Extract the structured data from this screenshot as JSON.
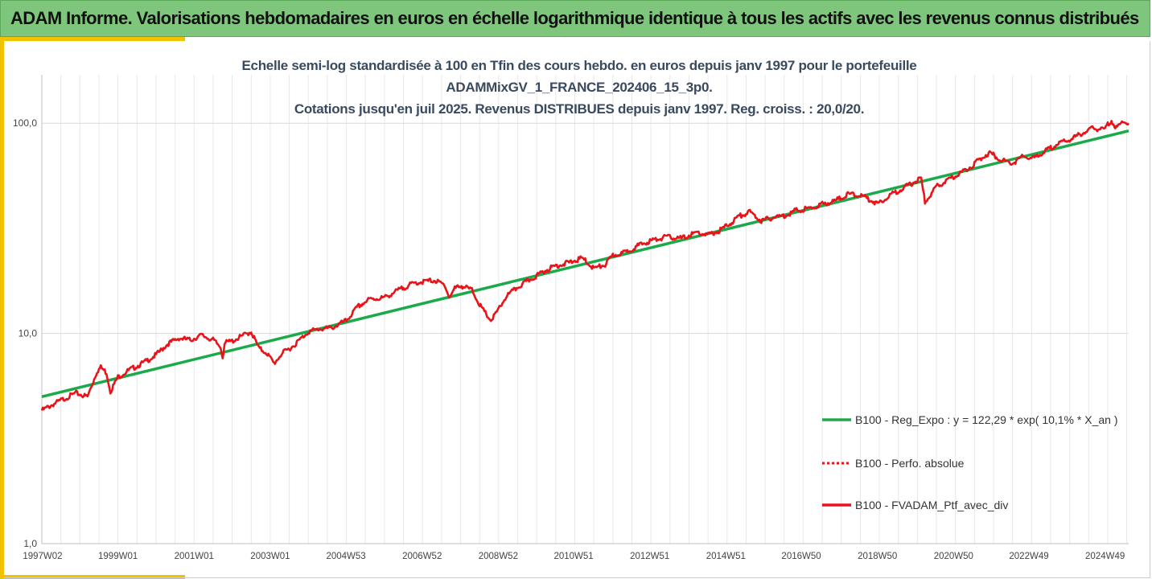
{
  "banner": {
    "title": "ADAM Informe. Valorisations hebdomadaires en euros en échelle logarithmique identique à tous les actifs avec les revenus connus distribués"
  },
  "colors": {
    "banner_bg": "#7dc67b",
    "accent": "#f2c200",
    "regression": "#1aaa4a",
    "portfolio": "#e8141a"
  },
  "chart_data": {
    "type": "line",
    "title_lines": [
      "Echelle semi-log standardisée à 100 en Tfin des cours hebdo.  en euros depuis janv 1997 pour le portefeuille",
      "ADAMMixGV_1_FRANCE_202406_15_3p0.",
      "Cotations  jusqu'en juil 2025. Revenus DISTRIBUES depuis janv 1997. Reg. croiss. : 20,0/20."
    ],
    "y_scale": "log",
    "ylim": [
      1,
      170
    ],
    "y_ticks": [
      1,
      10,
      100
    ],
    "y_tick_labels": [
      "1,0",
      "10,0",
      "100,0"
    ],
    "xlim": [
      1997.0,
      2025.55
    ],
    "x_ticks": [
      1997.02,
      1999.0,
      2001.0,
      2003.0,
      2004.99,
      2006.99,
      2008.99,
      2010.97,
      2012.97,
      2014.97,
      2016.95,
      2018.95,
      2020.95,
      2022.93,
      2024.93
    ],
    "x_tick_labels": [
      "1997W02",
      "1999W01",
      "2001W01",
      "2003W01",
      "2004W53",
      "2006W52",
      "2008W52",
      "2010W51",
      "2012W51",
      "2014W51",
      "2016W50",
      "2018W50",
      "2020W50",
      "2022W49",
      "2024W49"
    ],
    "grid": true,
    "legend_position": "right",
    "series": [
      {
        "name": "B100 - Reg_Expo : y = 122,29 * exp( 10,1% *  X_an )",
        "color": "#1aaa4a",
        "style": "solid",
        "x": [
          1997.0,
          2025.55
        ],
        "y": [
          5.0,
          92.0
        ]
      },
      {
        "name": "B100 - Perfo. absolue",
        "color": "#e8141a",
        "style": "dotted",
        "x": [],
        "y": []
      },
      {
        "name": "B100 - FVADAM_Ptf_avec_div",
        "color": "#e8141a",
        "style": "solid",
        "x": [
          1997.0,
          1997.3,
          1997.6,
          1997.9,
          1998.2,
          1998.45,
          1998.55,
          1998.7,
          1998.8,
          1999.0,
          1999.3,
          1999.7,
          2000.0,
          2000.3,
          2000.6,
          2000.9,
          2001.2,
          2001.5,
          2001.7,
          2001.75,
          2001.8,
          2002.0,
          2002.3,
          2002.5,
          2002.7,
          2002.9,
          2003.1,
          2003.3,
          2003.6,
          2004.0,
          2004.3,
          2004.6,
          2005.0,
          2005.3,
          2005.6,
          2006.0,
          2006.35,
          2006.5,
          2006.8,
          2007.3,
          2007.6,
          2007.7,
          2007.85,
          2008.0,
          2008.3,
          2008.55,
          2008.8,
          2009.0,
          2009.2,
          2009.5,
          2009.8,
          2010.2,
          2010.5,
          2010.8,
          2011.2,
          2011.5,
          2011.8,
          2012.0,
          2012.3,
          2012.7,
          2013.0,
          2013.4,
          2013.8,
          2014.2,
          2014.5,
          2014.8,
          2015.1,
          2015.3,
          2015.6,
          2015.9,
          2016.2,
          2016.5,
          2016.8,
          2017.2,
          2017.5,
          2017.8,
          2018.2,
          2018.5,
          2018.75,
          2018.95,
          2019.3,
          2019.6,
          2019.9,
          2020.1,
          2020.2,
          2020.5,
          2020.8,
          2021.1,
          2021.4,
          2021.7,
          2021.9,
          2022.2,
          2022.5,
          2022.8,
          2023.0,
          2023.3,
          2023.7,
          2024.0,
          2024.3,
          2024.6,
          2024.9,
          2025.1,
          2025.2,
          2025.4,
          2025.55
        ],
        "y": [
          4.3,
          4.6,
          4.9,
          5.2,
          5.0,
          6.6,
          6.9,
          6.5,
          5.3,
          6.2,
          6.7,
          7.3,
          7.9,
          8.9,
          9.5,
          9.3,
          9.8,
          9.3,
          8.6,
          7.7,
          9.0,
          9.2,
          9.8,
          10.2,
          8.5,
          8.1,
          7.2,
          8.0,
          8.7,
          10.2,
          10.5,
          10.6,
          11.5,
          13.4,
          14.5,
          14.8,
          16.0,
          16.5,
          17.4,
          17.9,
          16.9,
          14.8,
          16.4,
          16.9,
          16.1,
          13.2,
          11.5,
          13.0,
          15.0,
          16.6,
          17.9,
          19.8,
          21.0,
          21.6,
          22.8,
          20.4,
          21.2,
          23.5,
          24.2,
          26.3,
          27.6,
          28.8,
          28.3,
          30.2,
          29.4,
          30.8,
          33.5,
          36.0,
          37.8,
          34.3,
          35.6,
          36.3,
          38.4,
          39.4,
          41.2,
          42.5,
          46.0,
          45.4,
          43.4,
          41.4,
          45.7,
          48.8,
          52.3,
          54.5,
          42.0,
          49.8,
          53.6,
          57.6,
          62.0,
          68.8,
          72.4,
          67.0,
          64.5,
          70.0,
          67.5,
          72.5,
          80.0,
          83.4,
          89.0,
          94.5,
          93.0,
          104.0,
          94.0,
          102.0,
          100.0
        ]
      }
    ]
  }
}
